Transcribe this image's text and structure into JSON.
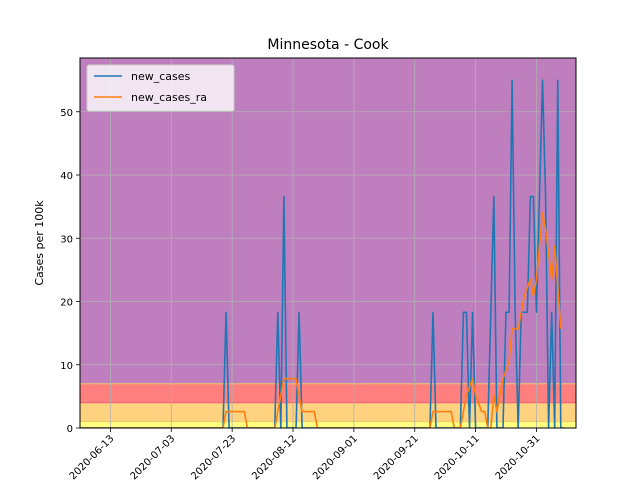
{
  "chart_data": {
    "type": "line",
    "title": "Minnesota - Cook",
    "xlabel": "",
    "ylabel": "Cases per 100k",
    "x_start": "2020-06-03",
    "x_end": "2020-11-13",
    "xlim": [
      "2020-06-03",
      "2020-11-13"
    ],
    "ylim": [
      0,
      58.5
    ],
    "yticks": [
      0,
      10,
      20,
      30,
      40,
      50
    ],
    "xticks": [
      "2020-06-13",
      "2020-07-03",
      "2020-07-23",
      "2020-08-12",
      "2020-09-01",
      "2020-09-21",
      "2020-10-11",
      "2020-10-31"
    ],
    "grid": true,
    "legend_position": "top-left",
    "risk_bands": [
      {
        "from": 0,
        "to": 1,
        "color": "#ffff80"
      },
      {
        "from": 1,
        "to": 4,
        "color": "#ffd27f"
      },
      {
        "from": 4,
        "to": 7,
        "color": "#ff7f7f"
      },
      {
        "from": 7,
        "to": 58.5,
        "color": "#bf7fbf"
      }
    ],
    "series": [
      {
        "name": "new_cases",
        "color": "#1f77b4",
        "points": [
          [
            "2020-06-03",
            0
          ],
          [
            "2020-07-20",
            0
          ],
          [
            "2020-07-21",
            18.3
          ],
          [
            "2020-07-22",
            0
          ],
          [
            "2020-08-06",
            0
          ],
          [
            "2020-08-07",
            18.3
          ],
          [
            "2020-08-08",
            0
          ],
          [
            "2020-08-09",
            36.6
          ],
          [
            "2020-08-10",
            0
          ],
          [
            "2020-08-13",
            0
          ],
          [
            "2020-08-14",
            18.3
          ],
          [
            "2020-08-15",
            0
          ],
          [
            "2020-09-26",
            0
          ],
          [
            "2020-09-27",
            18.3
          ],
          [
            "2020-09-28",
            0
          ],
          [
            "2020-10-06",
            0
          ],
          [
            "2020-10-07",
            18.3
          ],
          [
            "2020-10-08",
            18.3
          ],
          [
            "2020-10-09",
            0
          ],
          [
            "2020-10-10",
            18.3
          ],
          [
            "2020-10-11",
            0
          ],
          [
            "2020-10-15",
            0
          ],
          [
            "2020-10-17",
            36.6
          ],
          [
            "2020-10-18",
            0
          ],
          [
            "2020-10-20",
            0
          ],
          [
            "2020-10-21",
            18.3
          ],
          [
            "2020-10-22",
            18.3
          ],
          [
            "2020-10-23",
            55
          ],
          [
            "2020-10-24",
            18.3
          ],
          [
            "2020-10-25",
            0
          ],
          [
            "2020-10-26",
            18.3
          ],
          [
            "2020-10-27",
            18.3
          ],
          [
            "2020-10-28",
            18.3
          ],
          [
            "2020-10-29",
            36.6
          ],
          [
            "2020-10-30",
            36.6
          ],
          [
            "2020-10-31",
            18.3
          ],
          [
            "2020-11-01",
            36.6
          ],
          [
            "2020-11-02",
            55
          ],
          [
            "2020-11-03",
            36.6
          ],
          [
            "2020-11-04",
            0
          ],
          [
            "2020-11-05",
            18.3
          ],
          [
            "2020-11-06",
            0
          ],
          [
            "2020-11-07",
            55
          ],
          [
            "2020-11-08",
            0
          ],
          [
            "2020-11-09",
            0
          ]
        ]
      },
      {
        "name": "new_cases_ra",
        "color": "#ff7f0e",
        "points": [
          [
            "2020-06-03",
            0
          ],
          [
            "2020-07-20",
            0
          ],
          [
            "2020-07-21",
            2.6
          ],
          [
            "2020-07-27",
            2.6
          ],
          [
            "2020-07-28",
            0
          ],
          [
            "2020-08-06",
            0
          ],
          [
            "2020-08-07",
            2.6
          ],
          [
            "2020-08-09",
            7.8
          ],
          [
            "2020-08-13",
            7.8
          ],
          [
            "2020-08-15",
            2.6
          ],
          [
            "2020-08-19",
            2.6
          ],
          [
            "2020-08-20",
            0
          ],
          [
            "2020-09-26",
            0
          ],
          [
            "2020-09-27",
            2.6
          ],
          [
            "2020-10-03",
            2.6
          ],
          [
            "2020-10-04",
            0
          ],
          [
            "2020-10-06",
            0
          ],
          [
            "2020-10-07",
            2.6
          ],
          [
            "2020-10-08",
            5.2
          ],
          [
            "2020-10-10",
            7.8
          ],
          [
            "2020-10-11",
            5.2
          ],
          [
            "2020-10-13",
            2.6
          ],
          [
            "2020-10-14",
            2.6
          ],
          [
            "2020-10-15",
            0
          ],
          [
            "2020-10-16",
            0
          ],
          [
            "2020-10-17",
            5.2
          ],
          [
            "2020-10-18",
            2.6
          ],
          [
            "2020-10-20",
            7.8
          ],
          [
            "2020-10-22",
            10.5
          ],
          [
            "2020-10-23",
            15.7
          ],
          [
            "2020-10-25",
            15.7
          ],
          [
            "2020-10-26",
            18.3
          ],
          [
            "2020-10-27",
            20.9
          ],
          [
            "2020-10-29",
            23.5
          ],
          [
            "2020-10-30",
            20.9
          ],
          [
            "2020-10-31",
            23.5
          ],
          [
            "2020-11-01",
            28.8
          ],
          [
            "2020-11-02",
            34.0
          ],
          [
            "2020-11-03",
            31.4
          ],
          [
            "2020-11-05",
            23.5
          ],
          [
            "2020-11-06",
            28.8
          ],
          [
            "2020-11-08",
            15.7
          ]
        ]
      }
    ]
  }
}
